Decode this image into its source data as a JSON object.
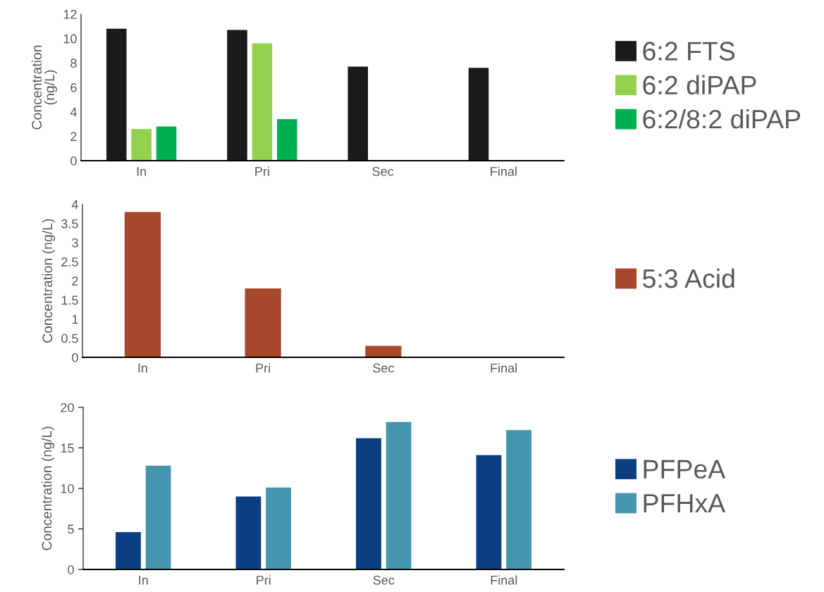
{
  "chart_data": [
    {
      "type": "bar",
      "categories": [
        "In",
        "Pri",
        "Sec",
        "Final"
      ],
      "ylabel": "Concentration\n(ng/L)",
      "ylim": [
        0,
        12
      ],
      "yticks": [
        0,
        2,
        4,
        6,
        8,
        10,
        12
      ],
      "grid": false,
      "legend": "right",
      "series": [
        {
          "name": "6:2 FTS",
          "color": "#1a1a1a",
          "values": [
            10.8,
            10.7,
            7.7,
            7.6
          ]
        },
        {
          "name": "6:2 diPAP",
          "color": "#92d050",
          "values": [
            2.6,
            9.6,
            null,
            null
          ]
        },
        {
          "name": "6:2/8:2 diPAP",
          "color": "#00b050",
          "values": [
            2.8,
            3.4,
            null,
            null
          ]
        }
      ]
    },
    {
      "type": "bar",
      "categories": [
        "In",
        "Pri",
        "Sec",
        "Final"
      ],
      "ylabel": "Concentration (ng/L)",
      "ylim": [
        0,
        4
      ],
      "yticks": [
        0,
        0.5,
        1,
        1.5,
        2,
        2.5,
        3,
        3.5,
        4
      ],
      "grid": false,
      "legend": "right",
      "series": [
        {
          "name": "5:3 Acid",
          "color": "#a9472d",
          "values": [
            3.8,
            1.8,
            0.3,
            null
          ]
        }
      ]
    },
    {
      "type": "bar",
      "categories": [
        "In",
        "Pri",
        "Sec",
        "Final"
      ],
      "ylabel": "Concentration (ng/L)",
      "ylim": [
        0,
        20
      ],
      "yticks": [
        0,
        5,
        10,
        15,
        20
      ],
      "grid": false,
      "legend": "right",
      "series": [
        {
          "name": "PFPeA",
          "color": "#0b3f80",
          "values": [
            4.6,
            9.0,
            16.2,
            14.1
          ]
        },
        {
          "name": "PFHxA",
          "color": "#4497ae",
          "values": [
            12.8,
            10.1,
            18.2,
            17.2
          ]
        }
      ]
    }
  ]
}
